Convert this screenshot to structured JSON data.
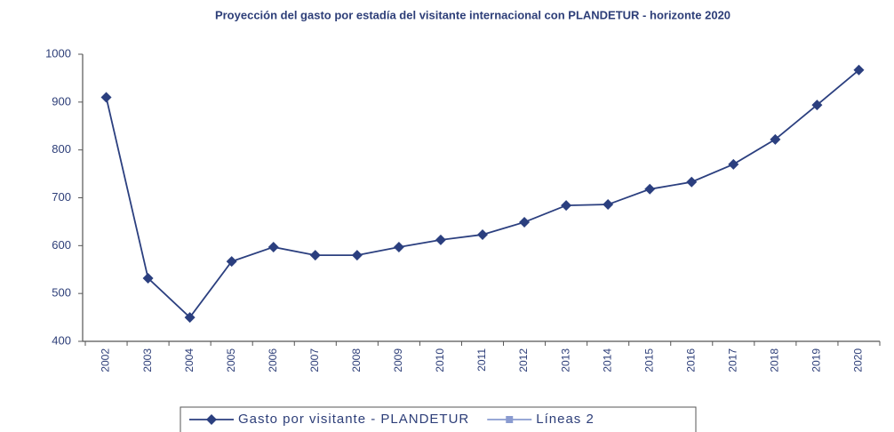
{
  "chart_data": {
    "type": "line",
    "title": "Proyección del gasto por estadía del visitante internacional con PLANDETUR - horizonte 2020",
    "categories": [
      "2002",
      "2003",
      "2004",
      "2005",
      "2006",
      "2007",
      "2008",
      "2009",
      "2010",
      "2011",
      "2012",
      "2013",
      "2014",
      "2015",
      "2016",
      "2017",
      "2018",
      "2019",
      "2020"
    ],
    "series": [
      {
        "name": "Gasto por visitante - PLANDETUR",
        "color": "#2b3f7f",
        "marker": "diamond",
        "values": [
          910,
          532,
          450,
          567,
          597,
          580,
          580,
          597,
          612,
          623,
          649,
          684,
          686,
          718,
          733,
          770,
          822,
          894,
          967
        ]
      },
      {
        "name": "Líneas 2",
        "color": "#8a9bd0",
        "marker": "square",
        "values": [
          null,
          null,
          null,
          null,
          null,
          null,
          null,
          null,
          null,
          null,
          null,
          null,
          null,
          null,
          null,
          null,
          null,
          null,
          null
        ]
      }
    ],
    "ylim": [
      400,
      1000
    ],
    "yticks": [
      400,
      500,
      600,
      700,
      800,
      900,
      1000
    ],
    "grid": false,
    "legend": "bottom"
  }
}
